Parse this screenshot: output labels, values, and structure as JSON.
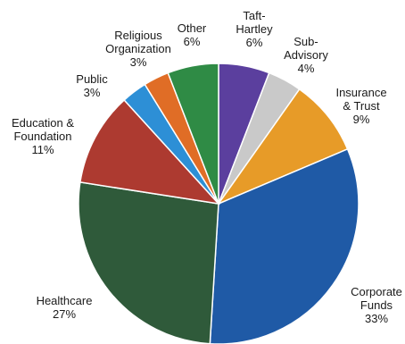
{
  "chart_data": {
    "type": "pie",
    "slices": [
      {
        "label": "Taft-Hartley",
        "value": 6,
        "display": "6%",
        "color": "#5b3f9e"
      },
      {
        "label": "Sub-Advisory",
        "value": 4,
        "display": "4%",
        "color": "#c9c9c9"
      },
      {
        "label": "Insurance & Trust",
        "value": 9,
        "display": "9%",
        "color": "#e79b28"
      },
      {
        "label": "Corporate Funds",
        "value": 33,
        "display": "33%",
        "color": "#1f5aa6"
      },
      {
        "label": "Healthcare",
        "value": 27,
        "display": "27%",
        "color": "#2f5a3a"
      },
      {
        "label": "Education & Foundation",
        "value": 11,
        "display": "11%",
        "color": "#ad3a30"
      },
      {
        "label": "Public",
        "value": 3,
        "display": "3%",
        "color": "#2d8fd6"
      },
      {
        "label": "Religious Organization",
        "value": 3,
        "display": "3%",
        "color": "#e06d26"
      },
      {
        "label": "Other",
        "value": 6,
        "display": "6%",
        "color": "#2f8b45"
      }
    ],
    "label_lines": [
      [
        "Taft-",
        "Hartley",
        "6%"
      ],
      [
        "Sub-",
        "Advisory",
        "4%"
      ],
      [
        "Insurance",
        "& Trust",
        "9%"
      ],
      [
        "Corporate",
        "Funds",
        "33%"
      ],
      [
        "Healthcare",
        "27%"
      ],
      [
        "Education &",
        "Foundation",
        "11%"
      ],
      [
        "Public",
        "3%"
      ],
      [
        "Religious",
        "Organization",
        "3%"
      ],
      [
        "Other",
        "6%"
      ]
    ],
    "start_angle_deg": 0,
    "direction": "clockwise"
  }
}
